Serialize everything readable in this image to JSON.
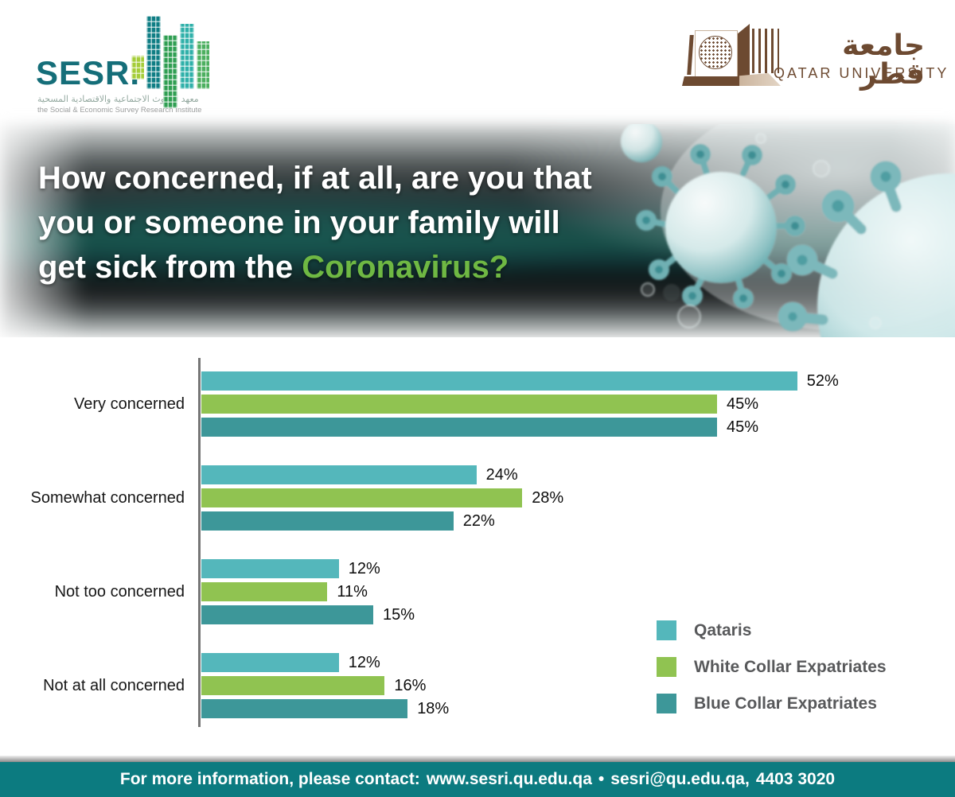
{
  "header": {
    "sesri": {
      "wordmark": "SESRI",
      "arabic_name": "معهد البحوث الاجتماعية والاقتصادية المسحية",
      "tagline": "the Social & Economic Survey Research Institute"
    },
    "qatar_university": {
      "arabic_name": "جامعة قطر",
      "wordmark": "QATAR UNIVERSITY"
    }
  },
  "banner": {
    "title_line1": "How concerned, if at all, are you that",
    "title_line2": "you or someone in your family will",
    "title_line3_prefix": "get sick from the",
    "title_line3_highlight": "Coronavirus?",
    "highlight_color": "#6fb843"
  },
  "chart_data": {
    "type": "bar",
    "orientation": "horizontal",
    "categories": [
      "Very concerned",
      "Somewhat concerned",
      "Not too concerned",
      "Not at all concerned"
    ],
    "series": [
      {
        "name": "Qataris",
        "color": "#54b7bb",
        "values": [
          52,
          24,
          12,
          12
        ]
      },
      {
        "name": "White Collar Expatriates",
        "color": "#90c351",
        "values": [
          45,
          28,
          11,
          16
        ]
      },
      {
        "name": "Blue Collar Expatriates",
        "color": "#3d9799",
        "values": [
          45,
          22,
          15,
          18
        ]
      }
    ],
    "value_suffix": "%",
    "value_labels": true,
    "xlim": [
      0,
      60
    ],
    "grid": false,
    "legend_position": "right-bottom"
  },
  "footer": {
    "prefix": "For more information, please contact:",
    "website": "www.sesri.qu.edu.qa",
    "separator": "•",
    "email": "sesri@qu.edu.qa,",
    "phone": "4403 3020"
  }
}
